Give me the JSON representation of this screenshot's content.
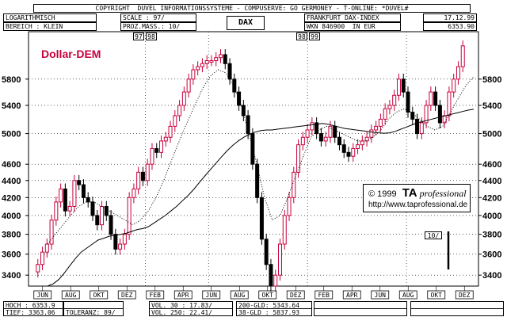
{
  "header": {
    "copyright": "COPYRIGHT  DUVEL INFORMATIONSSYSTEME - COMPUSERVE: GO GERMONEY - T-ONLINE: *DUVEL#",
    "scale_type": "LOGARITHMISCH",
    "range": "BEREICH : KLEIN",
    "scale": "SCALE : 97/",
    "proz_mass": "PROZ.MASS.: 10/",
    "title": "DAX",
    "index_name": "FRANKFURT DAX-INDEX",
    "wkn": "WKN 846900  IN EUR",
    "date": "17.12.99",
    "last_value": "6353.90"
  },
  "year_markers": [
    "97",
    "98",
    "98",
    "99"
  ],
  "overlay_label": "Dollar-DEM",
  "copyright_box": {
    "line1_prefix": "© 1999",
    "brand_bold": "TA",
    "brand_italic": "professional",
    "url": "http://www.taprofessional.de"
  },
  "volume_label": "10/",
  "footer": {
    "hoch": "HOCH : 6353.9",
    "tief": "TIEF: 3363.06",
    "toleranz": "TOLERANZ: 89/",
    "vol30": "VOL. 30 : 17.83/",
    "vol250": "VOL. 250: 22.41/",
    "gld200": "200-GLD: 5343.64",
    "gld38": "38-GLD : 5837.93"
  },
  "colors": {
    "up": "#c8003c",
    "down": "#000000",
    "grid": "#000000"
  },
  "chart_data": {
    "type": "line",
    "title": "DAX",
    "scale": "log",
    "ylim": [
      3300,
      6600
    ],
    "y_ticks": [
      3400,
      3600,
      3800,
      4000,
      4200,
      4400,
      4600,
      5000,
      5400,
      5800
    ],
    "x_ticks": [
      "JUN",
      "AUG",
      "OKT",
      "DEZ",
      "FEB",
      "APR",
      "JUN",
      "AUG",
      "OKT",
      "DEZ",
      "FEB",
      "APR",
      "JUN",
      "AUG",
      "OKT",
      "DEZ"
    ],
    "grid": true,
    "series": [
      {
        "name": "DAX",
        "values": [
          3430,
          3500,
          3620,
          3700,
          3950,
          4150,
          4300,
          4050,
          4100,
          4400,
          4350,
          4200,
          4150,
          4000,
          3900,
          4100,
          4000,
          3800,
          3650,
          3700,
          3800,
          4200,
          4300,
          4500,
          4400,
          4600,
          4800,
          4750,
          4900,
          4950,
          5100,
          5250,
          5400,
          5600,
          5800,
          5950,
          6000,
          6050,
          6100,
          6100,
          6150,
          6200,
          6050,
          5800,
          5600,
          5400,
          5250,
          5000,
          4600,
          4200,
          3750,
          3500,
          3300,
          3400,
          3700,
          4000,
          4200,
          4500,
          4850,
          4950,
          5050,
          5150,
          5000,
          4900,
          4950,
          5100,
          4950,
          4850,
          4750,
          4700,
          4800,
          4850,
          4900,
          4950,
          5050,
          5100,
          5200,
          5350,
          5400,
          5550,
          5800,
          5600,
          5300,
          5200,
          5000,
          5150,
          5400,
          5600,
          5400,
          5150,
          5250,
          5600,
          5800,
          6000,
          6350
        ]
      },
      {
        "name": "200-GLD",
        "values": [
          3300,
          3320,
          3360,
          3420,
          3490,
          3560,
          3620,
          3660,
          3700,
          3740,
          3760,
          3780,
          3790,
          3800,
          3810,
          3830,
          3850,
          3860,
          3880,
          3920,
          3960,
          4000,
          4050,
          4100,
          4160,
          4220,
          4290,
          4370,
          4450,
          4530,
          4610,
          4690,
          4770,
          4840,
          4900,
          4950,
          4990,
          5020,
          5040,
          5050,
          5050,
          5060,
          5070,
          5080,
          5090,
          5100,
          5110,
          5120,
          5130,
          5140,
          5130,
          5110,
          5090,
          5070,
          5060,
          5050,
          5040,
          5030,
          5020,
          5010,
          5005,
          5010,
          5030,
          5060,
          5090,
          5120,
          5150,
          5170,
          5190,
          5210,
          5230,
          5250,
          5270,
          5290,
          5310,
          5330,
          5343
        ]
      },
      {
        "name": "38-GLD",
        "values": [
          3700,
          3800,
          3900,
          4000,
          4100,
          4150,
          4150,
          4100,
          4050,
          4000,
          3950,
          3900,
          3950,
          4050,
          4200,
          4400,
          4650,
          4900,
          5150,
          5400,
          5650,
          5850,
          5950,
          5900,
          5700,
          5400,
          5000,
          4600,
          4200,
          3950,
          4000,
          4200,
          4450,
          4700,
          4950,
          5050,
          5100,
          5050,
          5000,
          4950,
          4900,
          4900,
          4950,
          5050,
          5200,
          5300,
          5350,
          5300,
          5200,
          5100,
          5050,
          5100,
          5300,
          5500,
          5700,
          5837
        ]
      }
    ]
  }
}
